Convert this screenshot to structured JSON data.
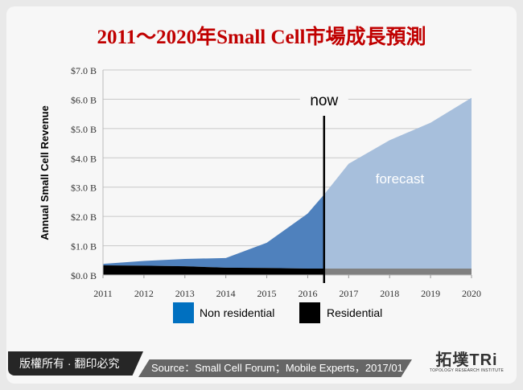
{
  "title": "2011～2020年Small Cell市場成長預測",
  "footer": {
    "copyright": "版權所有 · 翻印必究",
    "source": "Source：Small Cell Forum；Mobile Experts，2017/01"
  },
  "logo": {
    "text": "拓墣TRi",
    "subtitle": "TOPOLOGY RESEARCH INSTITUTE"
  },
  "chart_data": {
    "type": "area",
    "ylabel": "Annual Small Cell Revenue",
    "ylim": [
      0,
      7
    ],
    "yticks": [
      "$0.0 B",
      "$1.0 B",
      "$2.0 B",
      "$3.0 B",
      "$4.0 B",
      "$5.0 B",
      "$6.0 B",
      "$7.0 B"
    ],
    "xticks": [
      "2011",
      "2012",
      "2013",
      "2014",
      "2015",
      "2016",
      "2017",
      "2018",
      "2019",
      "2020"
    ],
    "x": [
      2011,
      2012,
      2013,
      2014,
      2015,
      2016,
      2016.4,
      2017,
      2018,
      2019,
      2020
    ],
    "series": [
      {
        "name": "Non residential",
        "color": "#4f81bd",
        "forecast_color": "#a7bfdc",
        "values": [
          0.05,
          0.16,
          0.25,
          0.33,
          0.86,
          1.88,
          2.53,
          3.58,
          4.38,
          4.98,
          5.83
        ]
      },
      {
        "name": "Residential",
        "color": "#000000",
        "forecast_color": "#808080",
        "values": [
          0.33,
          0.32,
          0.3,
          0.25,
          0.24,
          0.22,
          0.22,
          0.22,
          0.22,
          0.22,
          0.22
        ]
      }
    ],
    "stacked": true,
    "now_marker": {
      "label": "now",
      "x": 2016.4
    },
    "annotation": "forecast",
    "grid": true,
    "legend": "bottom"
  }
}
